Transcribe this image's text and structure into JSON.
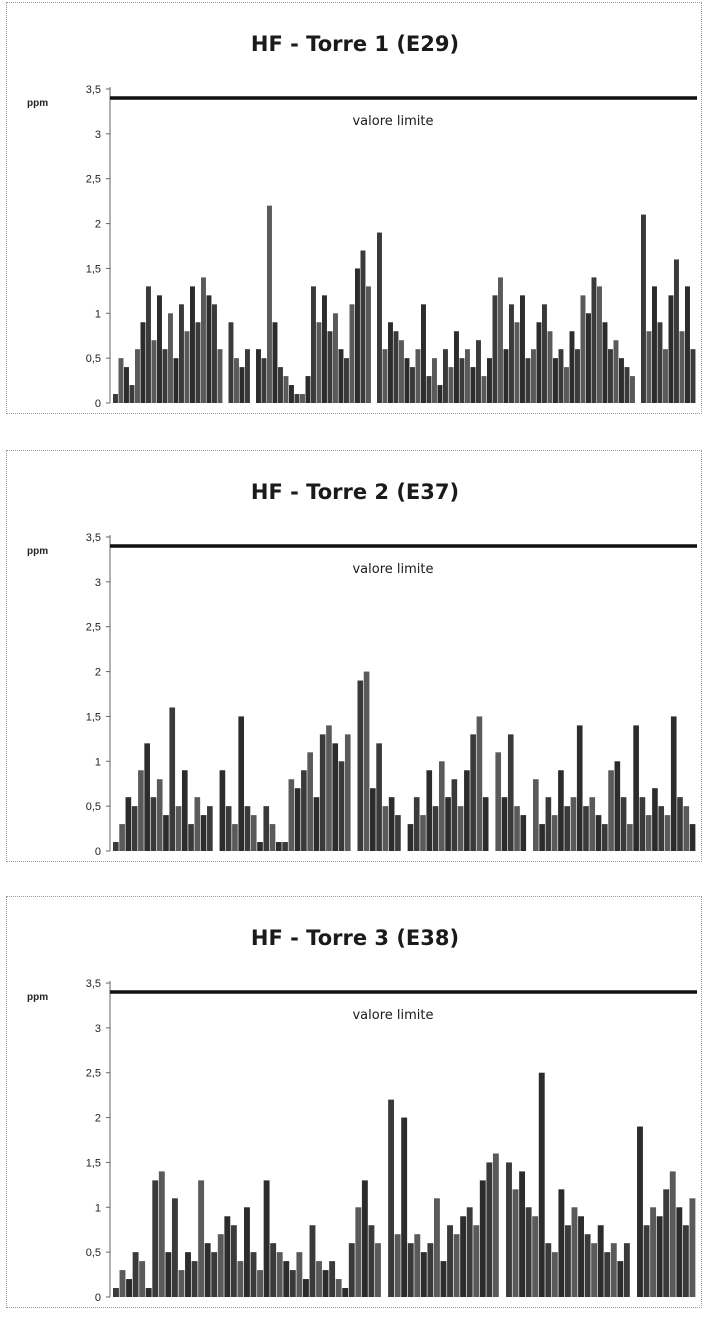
{
  "chart_data": [
    {
      "type": "bar",
      "title": "HF - Torre 1 (E29)",
      "ylabel": "ppm",
      "ylim": [
        0,
        3.5
      ],
      "yticks": [
        "0",
        "0,5",
        "1",
        "1,5",
        "2",
        "2,5",
        "3",
        "3,5"
      ],
      "limit": {
        "value": 3.4,
        "label": "valore limite"
      },
      "grid": false,
      "colors": {
        "bars": "#3a3a3a",
        "limit_line": "#111111"
      },
      "values": [
        0.1,
        0.5,
        0.4,
        0.2,
        0.6,
        0.9,
        1.3,
        0.7,
        1.2,
        0.6,
        1.0,
        0.5,
        1.1,
        0.8,
        1.3,
        0.9,
        1.4,
        1.2,
        1.1,
        0.6,
        0.0,
        0.9,
        0.5,
        0.4,
        0.6,
        0.0,
        0.6,
        0.5,
        2.2,
        0.9,
        0.4,
        0.3,
        0.2,
        0.1,
        0.1,
        0.3,
        1.3,
        0.9,
        1.2,
        0.8,
        1.0,
        0.6,
        0.5,
        1.1,
        1.5,
        1.7,
        1.3,
        0.0,
        1.9,
        0.6,
        0.9,
        0.8,
        0.7,
        0.5,
        0.4,
        0.6,
        1.1,
        0.3,
        0.5,
        0.2,
        0.6,
        0.4,
        0.8,
        0.5,
        0.6,
        0.4,
        0.7,
        0.3,
        0.5,
        1.2,
        1.4,
        0.6,
        1.1,
        0.9,
        1.2,
        0.5,
        0.6,
        0.9,
        1.1,
        0.8,
        0.5,
        0.6,
        0.4,
        0.8,
        0.6,
        1.2,
        1.0,
        1.4,
        1.3,
        0.9,
        0.6,
        0.7,
        0.5,
        0.4,
        0.3,
        0.0,
        2.1,
        0.8,
        1.3,
        0.9,
        0.6,
        1.2,
        1.6,
        0.8,
        1.3,
        0.6
      ]
    },
    {
      "type": "bar",
      "title": "HF - Torre 2 (E37)",
      "ylabel": "ppm",
      "ylim": [
        0,
        3.5
      ],
      "yticks": [
        "0",
        "0,5",
        "1",
        "1,5",
        "2",
        "2,5",
        "3",
        "3,5"
      ],
      "limit": {
        "value": 3.4,
        "label": "valore limite"
      },
      "grid": false,
      "colors": {
        "bars": "#3a3a3a",
        "limit_line": "#111111"
      },
      "values": [
        0.1,
        0.3,
        0.6,
        0.5,
        0.9,
        1.2,
        0.6,
        0.8,
        0.4,
        1.6,
        0.5,
        0.9,
        0.3,
        0.6,
        0.4,
        0.5,
        0.0,
        0.9,
        0.5,
        0.3,
        1.5,
        0.5,
        0.4,
        0.1,
        0.5,
        0.3,
        0.1,
        0.1,
        0.8,
        0.7,
        0.9,
        1.1,
        0.6,
        1.3,
        1.4,
        1.2,
        1.0,
        1.3,
        0.0,
        1.9,
        2.0,
        0.7,
        1.2,
        0.5,
        0.6,
        0.4,
        0.0,
        0.3,
        0.6,
        0.4,
        0.9,
        0.5,
        1.0,
        0.6,
        0.8,
        0.5,
        0.9,
        1.3,
        1.5,
        0.6,
        0.0,
        1.1,
        0.6,
        1.3,
        0.5,
        0.4,
        0.0,
        0.8,
        0.3,
        0.6,
        0.4,
        0.9,
        0.5,
        0.6,
        1.4,
        0.5,
        0.6,
        0.4,
        0.3,
        0.9,
        1.0,
        0.6,
        0.3,
        1.4,
        0.6,
        0.4,
        0.7,
        0.5,
        0.4,
        1.5,
        0.6,
        0.5,
        0.3
      ]
    },
    {
      "type": "bar",
      "title": "HF - Torre 3 (E38)",
      "ylabel": "ppm",
      "ylim": [
        0,
        3.5
      ],
      "yticks": [
        "0",
        "0,5",
        "1",
        "1,5",
        "2",
        "2,5",
        "3",
        "3,5"
      ],
      "limit": {
        "value": 3.4,
        "label": "valore limite"
      },
      "grid": false,
      "colors": {
        "bars": "#3a3a3a",
        "limit_line": "#111111"
      },
      "values": [
        0.1,
        0.3,
        0.2,
        0.5,
        0.4,
        0.1,
        1.3,
        1.4,
        0.5,
        1.1,
        0.3,
        0.5,
        0.4,
        1.3,
        0.6,
        0.5,
        0.7,
        0.9,
        0.8,
        0.4,
        1.0,
        0.5,
        0.3,
        1.3,
        0.6,
        0.5,
        0.4,
        0.3,
        0.5,
        0.2,
        0.8,
        0.4,
        0.3,
        0.4,
        0.2,
        0.1,
        0.6,
        1.0,
        1.3,
        0.8,
        0.6,
        0.0,
        2.2,
        0.7,
        2.0,
        0.6,
        0.7,
        0.5,
        0.6,
        1.1,
        0.4,
        0.8,
        0.7,
        0.9,
        1.0,
        0.8,
        1.3,
        1.5,
        1.6,
        0.0,
        1.5,
        1.2,
        1.4,
        1.0,
        0.9,
        2.5,
        0.6,
        0.5,
        1.2,
        0.8,
        1.0,
        0.9,
        0.7,
        0.6,
        0.8,
        0.5,
        0.6,
        0.4,
        0.6,
        0.0,
        1.9,
        0.8,
        1.0,
        0.9,
        1.2,
        1.4,
        1.0,
        0.8,
        1.1
      ]
    }
  ]
}
